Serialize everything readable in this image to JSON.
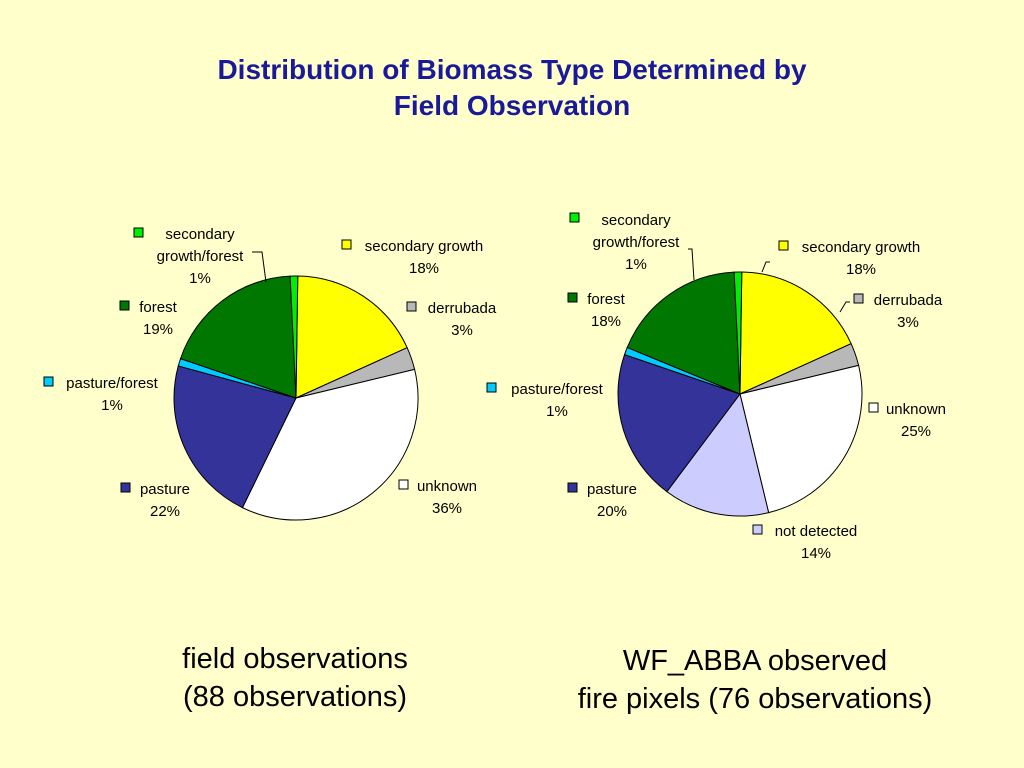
{
  "slide": {
    "title_line1": "Distribution of Biomass Type Determined by",
    "title_line2": "Field Observation",
    "caption_left_line1": "field observations",
    "caption_left_line2": "(88 observations)",
    "caption_right_line1": "WF_ABBA observed",
    "caption_right_line2": "fire pixels (76 observations)"
  },
  "colors": {
    "background": "#FFFFCC",
    "title": "#1A1A99",
    "secondary_growth_forest": "#00EE00",
    "secondary_growth": "#FFFF00",
    "derrubada": "#B8B8B8",
    "unknown": "#FFFFFF",
    "not_detected": "#CCCCFF",
    "pasture": "#333399",
    "pasture_forest": "#00CCFF",
    "forest": "#007700"
  },
  "chart_data": [
    {
      "type": "pie",
      "title": "",
      "slices": [
        {
          "label": "secondary growth",
          "value": 18,
          "display": "18%",
          "color": "#FFFF00"
        },
        {
          "label": "derrubada",
          "value": 3,
          "display": "3%",
          "color": "#B8B8B8"
        },
        {
          "label": "unknown",
          "value": 36,
          "display": "36%",
          "color": "#FFFFFF"
        },
        {
          "label": "pasture",
          "value": 22,
          "display": "22%",
          "color": "#333399"
        },
        {
          "label": "pasture/forest",
          "value": 1,
          "display": "1%",
          "color": "#00CCFF"
        },
        {
          "label": "forest",
          "value": 19,
          "display": "19%",
          "color": "#007700"
        },
        {
          "label": "secondary growth/forest",
          "value": 1,
          "display": "1%",
          "color": "#00EE00"
        }
      ]
    },
    {
      "type": "pie",
      "title": "",
      "slices": [
        {
          "label": "secondary growth",
          "value": 18,
          "display": "18%",
          "color": "#FFFF00"
        },
        {
          "label": "derrubada",
          "value": 3,
          "display": "3%",
          "color": "#B8B8B8"
        },
        {
          "label": "unknown",
          "value": 25,
          "display": "25%",
          "color": "#FFFFFF"
        },
        {
          "label": "not detected",
          "value": 14,
          "display": "14%",
          "color": "#CCCCFF"
        },
        {
          "label": "pasture",
          "value": 20,
          "display": "20%",
          "color": "#333399"
        },
        {
          "label": "pasture/forest",
          "value": 1,
          "display": "1%",
          "color": "#00CCFF"
        },
        {
          "label": "forest",
          "value": 18,
          "display": "18%",
          "color": "#007700"
        },
        {
          "label": "secondary growth/forest",
          "value": 1,
          "display": "1%",
          "color": "#00EE00"
        }
      ]
    }
  ]
}
